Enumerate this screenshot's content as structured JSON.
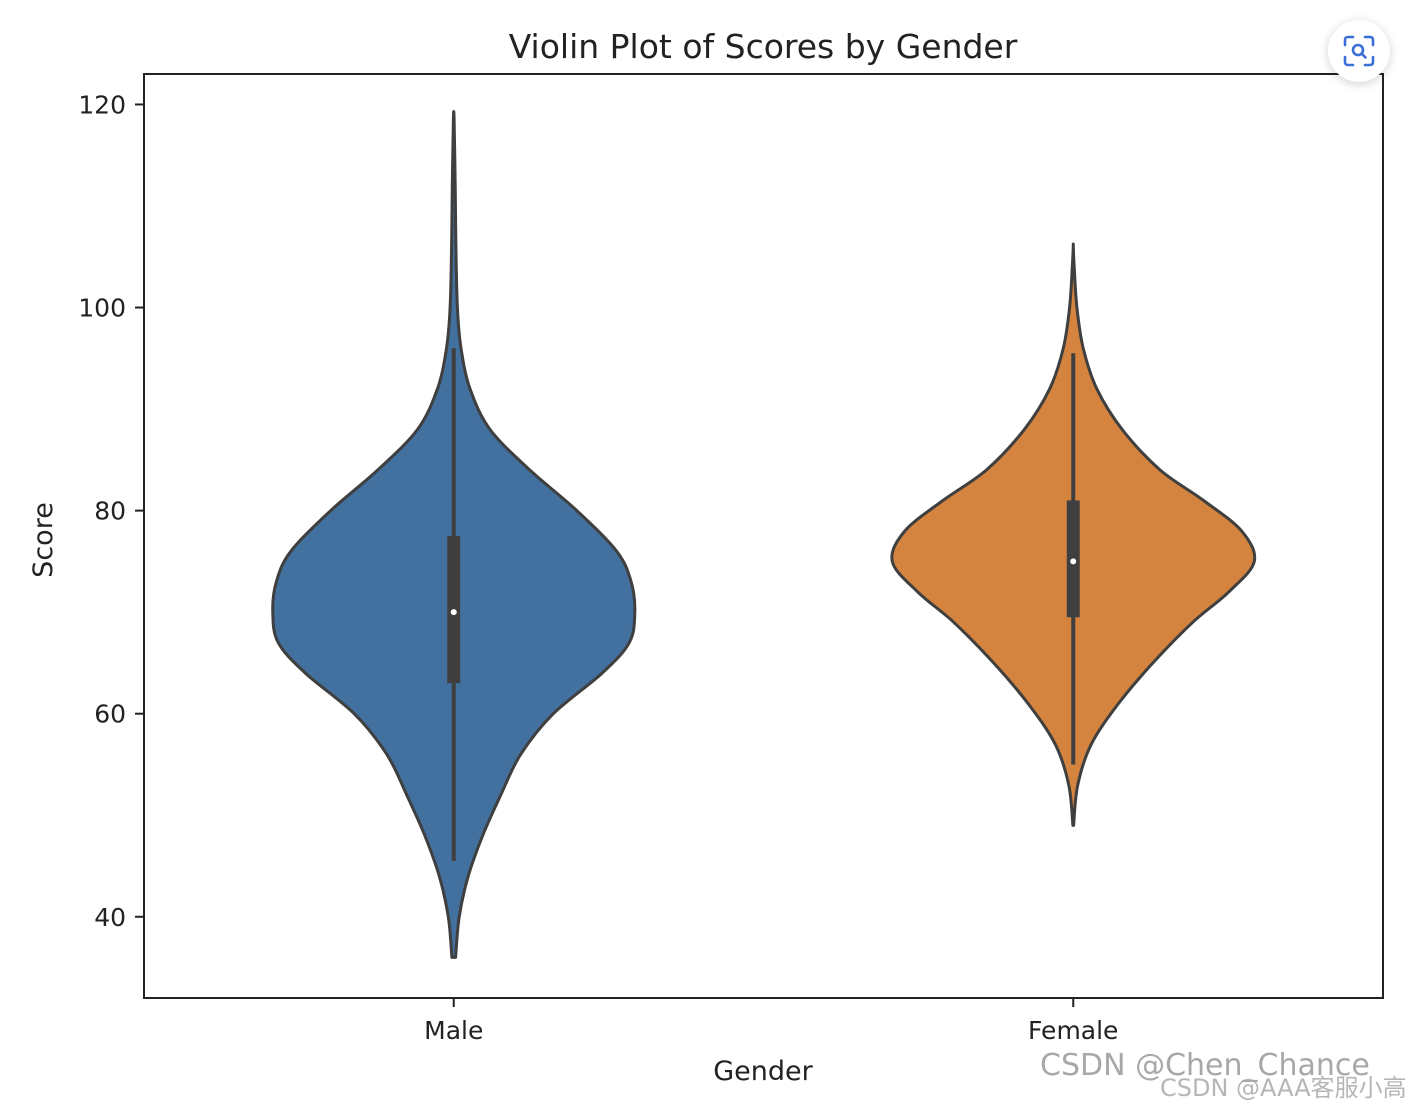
{
  "chart_data": {
    "type": "violin",
    "title": "Violin Plot of Scores by Gender",
    "xlabel": "Gender",
    "ylabel": "Score",
    "ylim": [
      32,
      123
    ],
    "yticks": [
      40,
      60,
      80,
      100,
      120
    ],
    "categories": [
      "Male",
      "Female"
    ],
    "grid": false,
    "series": [
      {
        "name": "Male",
        "color": "#4271A0",
        "min": 36,
        "max": 118.5,
        "whisker_low": 45.5,
        "q1": 63,
        "median": 70,
        "q3": 77.5,
        "whisker_high": 96,
        "density_profile": [
          [
            36,
            0.01
          ],
          [
            40,
            0.03
          ],
          [
            44,
            0.08
          ],
          [
            48,
            0.16
          ],
          [
            52,
            0.26
          ],
          [
            56,
            0.37
          ],
          [
            60,
            0.55
          ],
          [
            64,
            0.82
          ],
          [
            67,
            0.97
          ],
          [
            70,
            1.0
          ],
          [
            73,
            0.98
          ],
          [
            76,
            0.9
          ],
          [
            80,
            0.68
          ],
          [
            84,
            0.42
          ],
          [
            88,
            0.2
          ],
          [
            92,
            0.09
          ],
          [
            96,
            0.04
          ],
          [
            100,
            0.02
          ],
          [
            106,
            0.012
          ],
          [
            112,
            0.008
          ],
          [
            118.5,
            0.002
          ]
        ]
      },
      {
        "name": "Female",
        "color": "#D4843E",
        "min": 49,
        "max": 106,
        "whisker_low": 55,
        "q1": 69.5,
        "median": 75,
        "q3": 81,
        "whisker_high": 95.5,
        "density_profile": [
          [
            49,
            0.002
          ],
          [
            53,
            0.025
          ],
          [
            57,
            0.1
          ],
          [
            61,
            0.25
          ],
          [
            65,
            0.44
          ],
          [
            69,
            0.66
          ],
          [
            72,
            0.86
          ],
          [
            75,
            1.0
          ],
          [
            78,
            0.93
          ],
          [
            81,
            0.72
          ],
          [
            84,
            0.48
          ],
          [
            88,
            0.27
          ],
          [
            92,
            0.13
          ],
          [
            96,
            0.055
          ],
          [
            100,
            0.02
          ],
          [
            104,
            0.005
          ],
          [
            106,
            0.0
          ]
        ]
      }
    ]
  },
  "ui": {
    "scan_icon": "scan-search-icon",
    "watermark_primary": "CSDN @Chen_Chance",
    "watermark_secondary": "CSDN @AAA客服小高"
  }
}
